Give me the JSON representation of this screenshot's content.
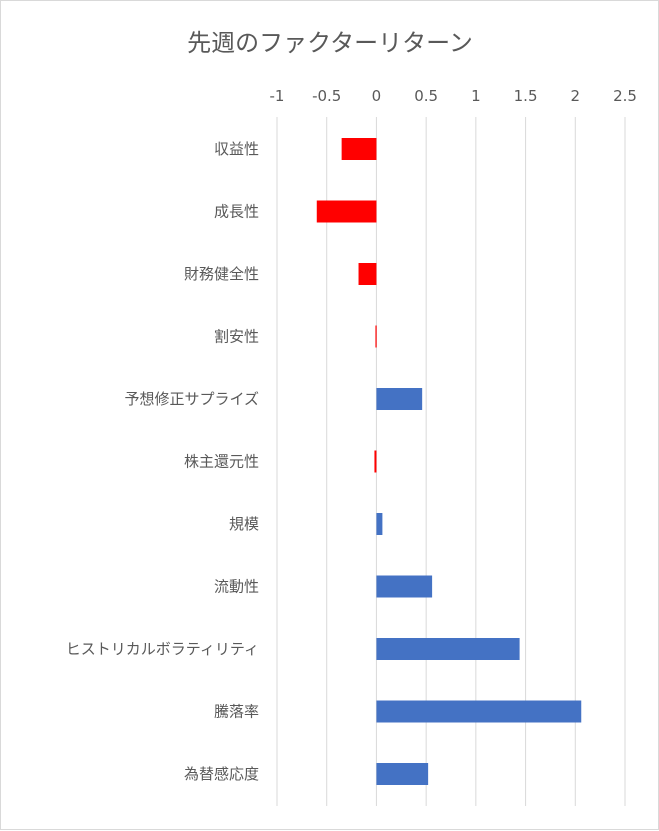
{
  "chart_data": {
    "type": "bar",
    "orientation": "horizontal",
    "title": "先週のファクターリターン",
    "xlabel": "",
    "ylabel": "",
    "xlim": [
      -1,
      2.5
    ],
    "x_ticks": [
      "-1",
      "-0.5",
      "0",
      "0.5",
      "1",
      "1.5",
      "2",
      "2.5"
    ],
    "x_axis_position": "top",
    "grid": "vertical",
    "legend": "none",
    "categories": [
      "収益性",
      "成長性",
      "財務健全性",
      "割安性",
      "予想修正サプライズ",
      "株主還元性",
      "規模",
      "流動性",
      "ヒストリカルボラティリティ",
      "騰落率",
      "為替感応度"
    ],
    "values": [
      -0.35,
      -0.6,
      -0.18,
      -0.01,
      0.46,
      -0.02,
      0.06,
      0.56,
      1.44,
      2.06,
      0.52
    ],
    "colors": {
      "positive": "#4472c4",
      "negative": "#ff0000",
      "grid": "#d9d9d9",
      "text": "#595959"
    }
  }
}
